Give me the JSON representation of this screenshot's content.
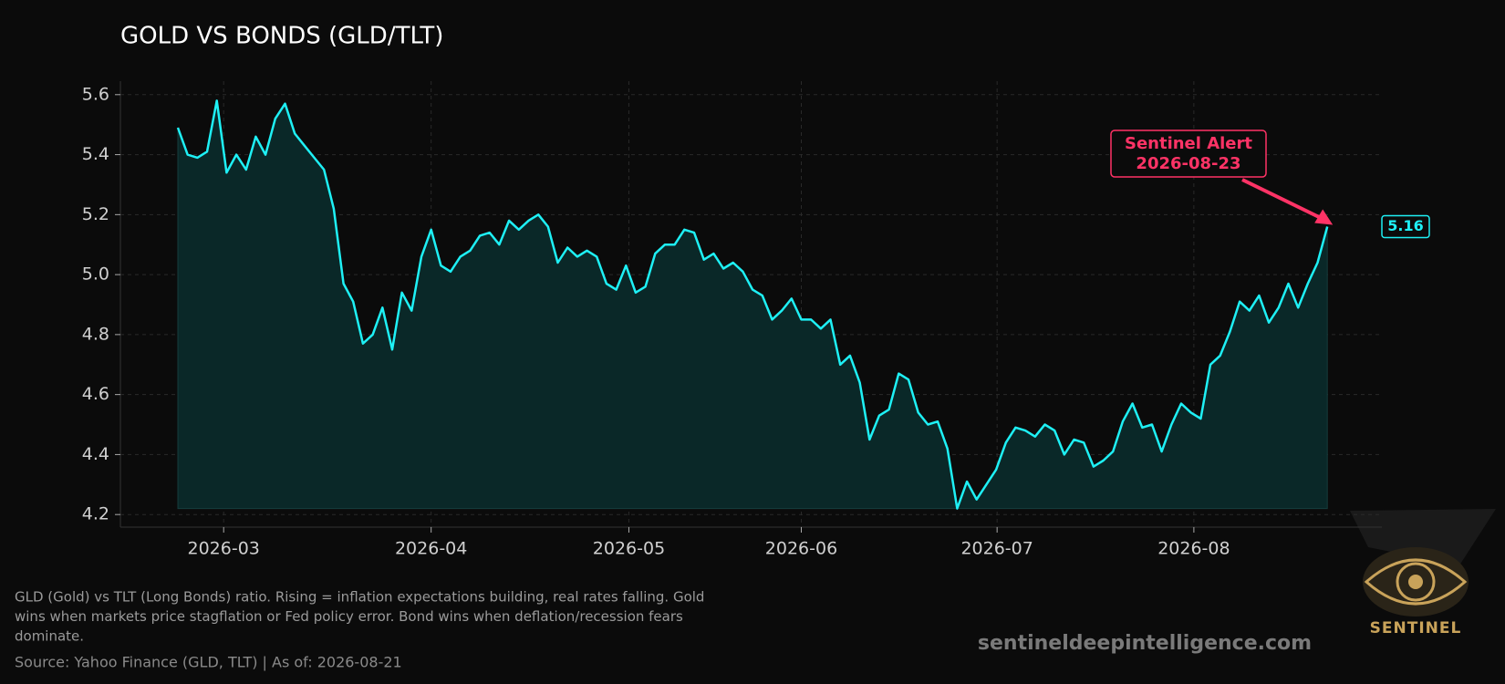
{
  "chart_data": {
    "type": "line",
    "title": "GOLD VS BONDS (GLD/TLT)",
    "values": [
      5.49,
      5.4,
      5.39,
      5.41,
      5.58,
      5.34,
      5.4,
      5.35,
      5.46,
      5.4,
      5.52,
      5.57,
      5.47,
      5.43,
      5.39,
      5.35,
      5.22,
      4.97,
      4.91,
      4.77,
      4.8,
      4.89,
      4.75,
      4.94,
      4.88,
      5.06,
      5.15,
      5.03,
      5.01,
      5.06,
      5.08,
      5.13,
      5.14,
      5.1,
      5.18,
      5.15,
      5.18,
      5.2,
      5.16,
      5.04,
      5.09,
      5.06,
      5.08,
      5.06,
      4.97,
      4.95,
      5.03,
      4.94,
      4.96,
      5.07,
      5.1,
      5.1,
      5.15,
      5.14,
      5.05,
      5.07,
      5.02,
      5.04,
      5.01,
      4.95,
      4.93,
      4.85,
      4.88,
      4.92,
      4.85,
      4.85,
      4.82,
      4.85,
      4.7,
      4.73,
      4.64,
      4.45,
      4.53,
      4.55,
      4.67,
      4.65,
      4.54,
      4.5,
      4.51,
      4.42,
      4.22,
      4.31,
      4.25,
      4.3,
      4.35,
      4.44,
      4.49,
      4.48,
      4.46,
      4.5,
      4.48,
      4.4,
      4.45,
      4.44,
      4.36,
      4.38,
      4.41,
      4.51,
      4.57,
      4.49,
      4.5,
      4.41,
      4.5,
      4.57,
      4.54,
      4.52,
      4.7,
      4.73,
      4.81,
      4.91,
      4.88,
      4.93,
      4.84,
      4.89,
      4.97,
      4.89,
      4.97,
      5.04,
      5.16
    ],
    "color": "#1ef0f5",
    "fill_color": "#0a2828",
    "xlim": [
      -5.9,
      123.6
    ],
    "xticks": [
      {
        "value": 4.7,
        "label": "2026-03"
      },
      {
        "value": 26,
        "label": "2026-04"
      },
      {
        "value": 46.3,
        "label": "2026-05"
      },
      {
        "value": 64,
        "label": "2026-06"
      },
      {
        "value": 84.1,
        "label": "2026-07"
      },
      {
        "value": 104.3,
        "label": "2026-08"
      }
    ],
    "ylim": [
      4.158,
      5.645
    ],
    "yticks": [
      {
        "value": 4.2,
        "label": "4.2"
      },
      {
        "value": 4.4,
        "label": "4.4"
      },
      {
        "value": 4.6,
        "label": "4.6"
      },
      {
        "value": 4.8,
        "label": "4.8"
      },
      {
        "value": 5.0,
        "label": "5.0"
      },
      {
        "value": 5.2,
        "label": "5.2"
      },
      {
        "value": 5.4,
        "label": "5.4"
      },
      {
        "value": 5.6,
        "label": "5.6"
      }
    ],
    "grid": true,
    "annotation": {
      "lines": [
        "Sentinel Alert",
        "2026-08-23"
      ],
      "color": "#ff3366"
    },
    "footnote": [
      "GLD (Gold) vs TLT (Long Bonds) ratio. Rising = inflation expectations building, real rates falling. Gold",
      "wins when markets price stagflation or Fed policy error. Bond wins when deflation/recession fears",
      "dominate."
    ],
    "source": "Source: Yahoo Finance (GLD, TLT) | As of: 2026-08-21",
    "watermark": "sentineldeepintelligence.com",
    "logo_text": "SENTINEL"
  }
}
